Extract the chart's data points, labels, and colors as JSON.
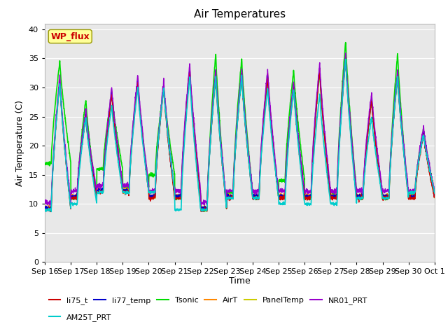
{
  "title": "Air Temperatures",
  "ylabel": "Air Temperature (C)",
  "xlabel": "Time",
  "background_color": "#e8e8e8",
  "figure_bg": "#ffffff",
  "ylim": [
    0,
    41
  ],
  "yticks": [
    0,
    5,
    10,
    15,
    20,
    25,
    30,
    35,
    40
  ],
  "series": [
    {
      "label": "li75_t",
      "color": "#cc0000",
      "lw": 1.0,
      "zorder": 5
    },
    {
      "label": "li77_temp",
      "color": "#0000cc",
      "lw": 1.0,
      "zorder": 5
    },
    {
      "label": "Tsonic",
      "color": "#00dd00",
      "lw": 1.2,
      "zorder": 4
    },
    {
      "label": "AirT",
      "color": "#ff8800",
      "lw": 1.0,
      "zorder": 5
    },
    {
      "label": "PanelTemp",
      "color": "#cccc00",
      "lw": 1.0,
      "zorder": 5
    },
    {
      "label": "NR01_PRT",
      "color": "#9900cc",
      "lw": 1.0,
      "zorder": 5
    },
    {
      "label": "AM25T_PRT",
      "color": "#00cccc",
      "lw": 1.2,
      "zorder": 6
    }
  ],
  "xtick_labels": [
    "Sep 16",
    "Sep 17",
    "Sep 18",
    "Sep 19",
    "Sep 20",
    "Sep 21",
    "Sep 22",
    "Sep 23",
    "Sep 24",
    "Sep 25",
    "Sep 26",
    "Sep 27",
    "Sep 28",
    "Sep 29",
    "Sep 30",
    "Oct 1"
  ],
  "wp_flux_label": "WP_flux",
  "wp_flux_fg": "#cc0000",
  "wp_flux_bg": "#ffff99",
  "wp_flux_border": "#999900",
  "peaks_main": [
    31,
    25,
    29,
    31,
    30,
    33,
    32,
    32,
    32,
    30,
    33,
    35,
    28,
    32,
    22
  ],
  "mins_main": [
    9,
    11,
    12,
    12,
    11,
    11,
    9,
    11,
    11,
    11,
    11,
    11,
    11,
    11,
    11
  ],
  "peaks_tsonic": [
    34.5,
    28,
    29,
    31,
    30,
    33,
    36,
    35,
    32,
    33,
    33,
    38,
    28,
    36,
    23
  ],
  "mins_tsonic": [
    17,
    11,
    16,
    13,
    15,
    11,
    9,
    12,
    11,
    14,
    11,
    12,
    11,
    11,
    12
  ],
  "peaks_am25t": [
    31,
    25,
    27,
    30,
    30,
    32,
    32,
    32,
    30,
    30,
    29,
    35,
    25,
    32,
    22
  ],
  "mins_am25t": [
    9,
    10,
    12,
    12,
    12,
    9,
    9,
    11,
    11,
    10,
    10,
    10,
    11,
    11,
    12
  ]
}
